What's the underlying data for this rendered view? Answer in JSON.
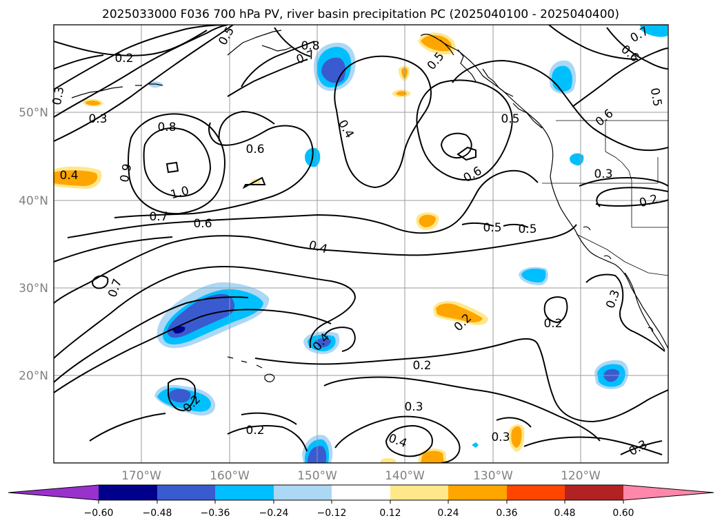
{
  "title": "2025033000 F036 700 hPa PV, river basin precipitation PC (2025040100 - 2025040400)",
  "map": {
    "latitude_labels": [
      "50°N",
      "40°N",
      "30°N",
      "20°N"
    ],
    "longitude_labels": [
      "170°W",
      "160°W",
      "150°W",
      "140°W",
      "130°W",
      "120°W"
    ],
    "gridlines": true
  },
  "contour_labels": [
    "0.2",
    "0.3",
    "0.5",
    "0.8",
    "0.7",
    "0.5",
    "0.7",
    "0.6",
    "0.5",
    "0.4",
    "0.8",
    "0.6",
    "0.5",
    "0.3",
    "0.4",
    "1.0",
    "0.9",
    "0.6",
    "0.6",
    "0.3",
    "0.2",
    "0.7",
    "0.6",
    "0.4",
    "0.5",
    "0.5",
    "0.7",
    "0.3",
    "0.2",
    "0.4",
    "0.2",
    "0.2",
    "0.2",
    "0.3",
    "0.4",
    "0.3",
    "0.2",
    "0.3"
  ],
  "colorbar": {
    "colors": {
      "c0": "#9932cc",
      "c1": "#00008b",
      "c2": "#3a5bd0",
      "c3": "#00bfff",
      "c4": "#add8f5",
      "c5": "#ffffff",
      "c6": "#ffe88a",
      "c7": "#ffa500",
      "c8": "#ff4500",
      "c9": "#b22222",
      "c10": "#ff87aa"
    },
    "ticks": [
      "−0.60",
      "−0.48",
      "−0.36",
      "−0.24",
      "−0.12",
      "0.12",
      "0.24",
      "0.36",
      "0.48",
      "0.60"
    ]
  }
}
